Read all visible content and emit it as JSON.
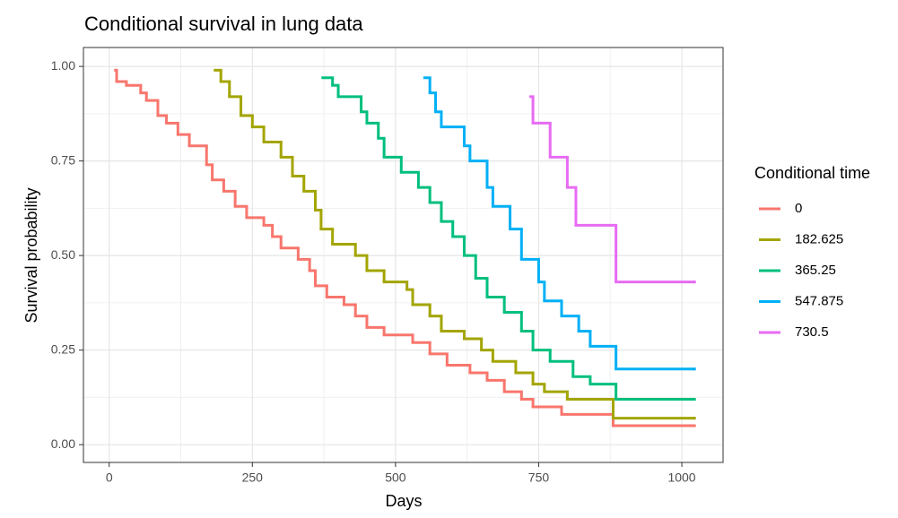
{
  "chart_data": {
    "type": "step",
    "title": "Conditional survival in lung data",
    "x_label": "Days",
    "y_label": "Survival probability",
    "legend_title": "Conditional time",
    "legend": "right",
    "grid": true,
    "xlim": [
      -45,
      1072
    ],
    "ylim": [
      -0.047,
      1.05
    ],
    "xticks": [
      0,
      250,
      500,
      750,
      1000
    ],
    "yticks": [
      {
        "value": 0,
        "label": "0.00"
      },
      {
        "value": 0.25,
        "label": "0.25"
      },
      {
        "value": 0.5,
        "label": "0.50"
      },
      {
        "value": 0.75,
        "label": "0.75"
      },
      {
        "value": 1,
        "label": "1.00"
      }
    ],
    "series": [
      {
        "name": "0",
        "color": "#F8766D",
        "x": [
          11,
          13,
          30,
          55,
          65,
          85,
          100,
          120,
          140,
          170,
          180,
          200,
          220,
          240,
          270,
          285,
          300,
          330,
          350,
          360,
          380,
          410,
          430,
          450,
          480,
          530,
          560,
          590,
          630,
          660,
          690,
          720,
          740,
          790,
          880,
          1022
        ],
        "values": [
          0.99,
          0.96,
          0.95,
          0.93,
          0.91,
          0.87,
          0.85,
          0.82,
          0.79,
          0.74,
          0.7,
          0.67,
          0.63,
          0.6,
          0.58,
          0.55,
          0.52,
          0.49,
          0.46,
          0.42,
          0.39,
          0.37,
          0.34,
          0.31,
          0.29,
          0.27,
          0.24,
          0.21,
          0.19,
          0.17,
          0.14,
          0.12,
          0.1,
          0.08,
          0.05,
          0.05
        ]
      },
      {
        "name": "182.625",
        "color": "#A3A500",
        "x": [
          185,
          195,
          210,
          230,
          250,
          270,
          300,
          320,
          340,
          360,
          370,
          390,
          430,
          450,
          480,
          520,
          530,
          560,
          580,
          620,
          650,
          670,
          710,
          740,
          760,
          800,
          880,
          1022
        ],
        "values": [
          0.99,
          0.96,
          0.92,
          0.87,
          0.84,
          0.8,
          0.76,
          0.71,
          0.67,
          0.62,
          0.57,
          0.53,
          0.5,
          0.46,
          0.43,
          0.41,
          0.37,
          0.34,
          0.3,
          0.28,
          0.25,
          0.22,
          0.19,
          0.16,
          0.14,
          0.12,
          0.07,
          0.07
        ]
      },
      {
        "name": "365.25",
        "color": "#00BF7D",
        "x": [
          373,
          390,
          400,
          440,
          450,
          470,
          480,
          510,
          540,
          560,
          580,
          600,
          620,
          640,
          660,
          690,
          720,
          740,
          770,
          810,
          840,
          885,
          1022
        ],
        "values": [
          0.97,
          0.95,
          0.92,
          0.88,
          0.85,
          0.81,
          0.76,
          0.72,
          0.68,
          0.64,
          0.59,
          0.55,
          0.5,
          0.44,
          0.39,
          0.35,
          0.3,
          0.25,
          0.22,
          0.18,
          0.16,
          0.12,
          0.12
        ]
      },
      {
        "name": "547.875",
        "color": "#00B0F6",
        "x": [
          551,
          560,
          570,
          580,
          620,
          630,
          660,
          670,
          700,
          720,
          750,
          760,
          790,
          820,
          840,
          885,
          1022
        ],
        "values": [
          0.97,
          0.93,
          0.88,
          0.84,
          0.79,
          0.75,
          0.68,
          0.63,
          0.57,
          0.49,
          0.43,
          0.38,
          0.34,
          0.3,
          0.26,
          0.2,
          0.2
        ]
      },
      {
        "name": "730.5",
        "color": "#E76BF3",
        "x": [
          736,
          740,
          770,
          800,
          815,
          885,
          1022
        ],
        "values": [
          0.92,
          0.85,
          0.76,
          0.68,
          0.58,
          0.43,
          0.43
        ]
      }
    ]
  }
}
